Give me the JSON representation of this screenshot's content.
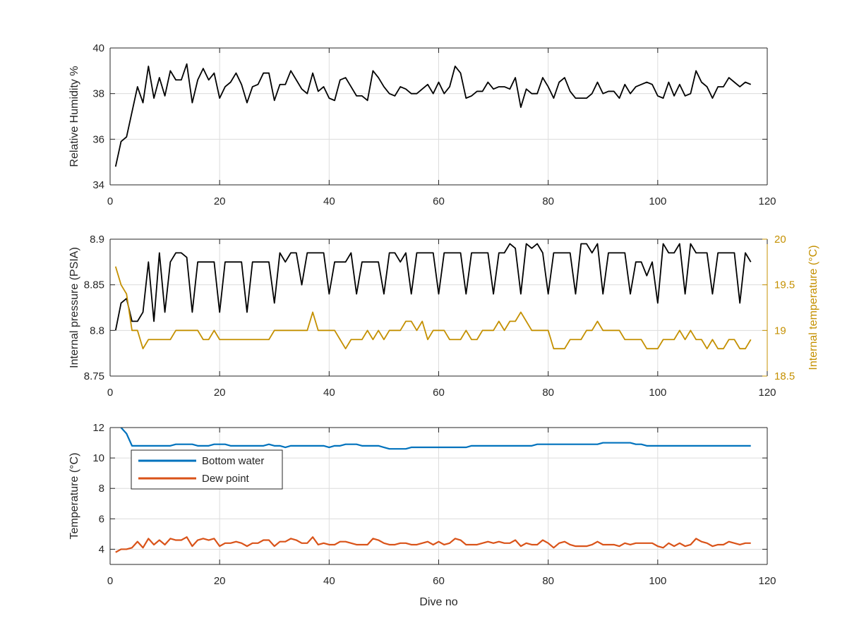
{
  "chart_data": [
    {
      "type": "line",
      "ylabel": "Relative Humidity %",
      "xlim": [
        0,
        120
      ],
      "ylim": [
        34,
        40
      ],
      "xticks": [
        0,
        20,
        40,
        60,
        80,
        100,
        120
      ],
      "yticks": [
        34,
        36,
        38,
        40
      ],
      "grid": true,
      "series": [
        {
          "color": "#000000",
          "values": [
            34.8,
            35.9,
            36.1,
            37.2,
            38.3,
            37.6,
            39.2,
            37.8,
            38.7,
            37.9,
            39.0,
            38.6,
            38.6,
            39.3,
            37.6,
            38.6,
            39.1,
            38.6,
            38.9,
            37.8,
            38.3,
            38.5,
            38.9,
            38.4,
            37.6,
            38.3,
            38.4,
            38.9,
            38.9,
            37.7,
            38.4,
            38.4,
            39.0,
            38.6,
            38.2,
            38.0,
            38.9,
            38.1,
            38.3,
            37.8,
            37.7,
            38.6,
            38.7,
            38.3,
            37.9,
            37.9,
            37.7,
            39.0,
            38.7,
            38.3,
            38.0,
            37.9,
            38.3,
            38.2,
            38.0,
            38.0,
            38.2,
            38.4,
            38.0,
            38.5,
            38.0,
            38.3,
            39.2,
            38.9,
            37.8,
            37.9,
            38.1,
            38.1,
            38.5,
            38.2,
            38.3,
            38.3,
            38.2,
            38.7,
            37.4,
            38.2,
            38.0,
            38.0,
            38.7,
            38.3,
            37.8,
            38.5,
            38.7,
            38.1,
            37.8,
            37.8,
            37.8,
            38.0,
            38.5,
            38.0,
            38.1,
            38.1,
            37.8,
            38.4,
            38.0,
            38.3,
            38.4,
            38.5,
            38.4,
            37.9,
            37.8,
            38.5,
            37.9,
            38.4,
            37.9,
            38.0,
            39.0,
            38.5,
            38.3,
            37.8,
            38.3,
            38.3,
            38.7,
            38.5,
            38.3,
            38.5,
            38.4
          ]
        }
      ]
    },
    {
      "type": "line",
      "ylabel": "Internal pressure (PSIA)",
      "y2label": "Internal temperature (°C)",
      "xlim": [
        0,
        120
      ],
      "ylim": [
        8.75,
        8.9
      ],
      "y2lim": [
        18.5,
        20
      ],
      "xticks": [
        0,
        20,
        40,
        60,
        80,
        100,
        120
      ],
      "yticks": [
        8.75,
        8.8,
        8.85,
        8.9
      ],
      "y2ticks": [
        18.5,
        19,
        19.5,
        20
      ],
      "y2color": "#c49000",
      "grid": true,
      "series": [
        {
          "axis": "left",
          "color": "#000000",
          "values": [
            8.8,
            8.83,
            8.835,
            8.81,
            8.81,
            8.82,
            8.875,
            8.81,
            8.885,
            8.82,
            8.875,
            8.885,
            8.885,
            8.88,
            8.82,
            8.875,
            8.875,
            8.875,
            8.875,
            8.82,
            8.875,
            8.875,
            8.875,
            8.875,
            8.82,
            8.875,
            8.875,
            8.875,
            8.875,
            8.83,
            8.885,
            8.875,
            8.885,
            8.885,
            8.85,
            8.885,
            8.885,
            8.885,
            8.885,
            8.84,
            8.875,
            8.875,
            8.875,
            8.885,
            8.84,
            8.875,
            8.875,
            8.875,
            8.875,
            8.84,
            8.885,
            8.885,
            8.875,
            8.885,
            8.84,
            8.885,
            8.885,
            8.885,
            8.885,
            8.84,
            8.885,
            8.885,
            8.885,
            8.885,
            8.84,
            8.885,
            8.885,
            8.885,
            8.885,
            8.84,
            8.885,
            8.885,
            8.895,
            8.89,
            8.84,
            8.895,
            8.89,
            8.895,
            8.885,
            8.84,
            8.885,
            8.885,
            8.885,
            8.885,
            8.84,
            8.895,
            8.895,
            8.885,
            8.895,
            8.84,
            8.885,
            8.885,
            8.885,
            8.885,
            8.84,
            8.875,
            8.875,
            8.86,
            8.875,
            8.83,
            8.895,
            8.885,
            8.885,
            8.895,
            8.84,
            8.895,
            8.885,
            8.885,
            8.885,
            8.84,
            8.885,
            8.885,
            8.885,
            8.885,
            8.83,
            8.885,
            8.875
          ]
        },
        {
          "axis": "right",
          "color": "#c49000",
          "values": [
            19.7,
            19.5,
            19.4,
            19.0,
            19.0,
            18.8,
            18.9,
            18.9,
            18.9,
            18.9,
            18.9,
            19.0,
            19.0,
            19.0,
            19.0,
            19.0,
            18.9,
            18.9,
            19.0,
            18.9,
            18.9,
            18.9,
            18.9,
            18.9,
            18.9,
            18.9,
            18.9,
            18.9,
            18.9,
            19.0,
            19.0,
            19.0,
            19.0,
            19.0,
            19.0,
            19.0,
            19.2,
            19.0,
            19.0,
            19.0,
            19.0,
            18.9,
            18.8,
            18.9,
            18.9,
            18.9,
            19.0,
            18.9,
            19.0,
            18.9,
            19.0,
            19.0,
            19.0,
            19.1,
            19.1,
            19.0,
            19.1,
            18.9,
            19.0,
            19.0,
            19.0,
            18.9,
            18.9,
            18.9,
            19.0,
            18.9,
            18.9,
            19.0,
            19.0,
            19.0,
            19.1,
            19.0,
            19.1,
            19.1,
            19.2,
            19.1,
            19.0,
            19.0,
            19.0,
            19.0,
            18.8,
            18.8,
            18.8,
            18.9,
            18.9,
            18.9,
            19.0,
            19.0,
            19.1,
            19.0,
            19.0,
            19.0,
            19.0,
            18.9,
            18.9,
            18.9,
            18.9,
            18.8,
            18.8,
            18.8,
            18.9,
            18.9,
            18.9,
            19.0,
            18.9,
            19.0,
            18.9,
            18.9,
            18.8,
            18.9,
            18.8,
            18.8,
            18.9,
            18.9,
            18.8,
            18.8,
            18.9
          ]
        }
      ]
    },
    {
      "type": "line",
      "xlabel": "Dive no",
      "ylabel": "Temperature (°C)",
      "xlim": [
        0,
        120
      ],
      "ylim": [
        3,
        12
      ],
      "xticks": [
        0,
        20,
        40,
        60,
        80,
        100,
        120
      ],
      "yticks": [
        4,
        6,
        8,
        10,
        12
      ],
      "grid": true,
      "legend": "top-left",
      "series": [
        {
          "name": "Bottom water",
          "color": "#0072bd",
          "values": [
            12.5,
            12.0,
            11.6,
            10.8,
            10.8,
            10.8,
            10.8,
            10.8,
            10.8,
            10.8,
            10.8,
            10.9,
            10.9,
            10.9,
            10.9,
            10.8,
            10.8,
            10.8,
            10.9,
            10.9,
            10.9,
            10.8,
            10.8,
            10.8,
            10.8,
            10.8,
            10.8,
            10.8,
            10.9,
            10.8,
            10.8,
            10.7,
            10.8,
            10.8,
            10.8,
            10.8,
            10.8,
            10.8,
            10.8,
            10.7,
            10.8,
            10.8,
            10.9,
            10.9,
            10.9,
            10.8,
            10.8,
            10.8,
            10.8,
            10.7,
            10.6,
            10.6,
            10.6,
            10.6,
            10.7,
            10.7,
            10.7,
            10.7,
            10.7,
            10.7,
            10.7,
            10.7,
            10.7,
            10.7,
            10.7,
            10.8,
            10.8,
            10.8,
            10.8,
            10.8,
            10.8,
            10.8,
            10.8,
            10.8,
            10.8,
            10.8,
            10.8,
            10.9,
            10.9,
            10.9,
            10.9,
            10.9,
            10.9,
            10.9,
            10.9,
            10.9,
            10.9,
            10.9,
            10.9,
            11.0,
            11.0,
            11.0,
            11.0,
            11.0,
            11.0,
            10.9,
            10.9,
            10.8,
            10.8,
            10.8,
            10.8,
            10.8,
            10.8,
            10.8,
            10.8,
            10.8,
            10.8,
            10.8,
            10.8,
            10.8,
            10.8,
            10.8,
            10.8,
            10.8,
            10.8,
            10.8,
            10.8
          ]
        },
        {
          "name": "Dew point",
          "color": "#d95319",
          "values": [
            3.8,
            4.0,
            4.0,
            4.1,
            4.5,
            4.1,
            4.7,
            4.3,
            4.6,
            4.3,
            4.7,
            4.6,
            4.6,
            4.8,
            4.2,
            4.6,
            4.7,
            4.6,
            4.7,
            4.2,
            4.4,
            4.4,
            4.5,
            4.4,
            4.2,
            4.4,
            4.4,
            4.6,
            4.6,
            4.2,
            4.5,
            4.5,
            4.7,
            4.6,
            4.4,
            4.4,
            4.8,
            4.3,
            4.4,
            4.3,
            4.3,
            4.5,
            4.5,
            4.4,
            4.3,
            4.3,
            4.3,
            4.7,
            4.6,
            4.4,
            4.3,
            4.3,
            4.4,
            4.4,
            4.3,
            4.3,
            4.4,
            4.5,
            4.3,
            4.5,
            4.3,
            4.4,
            4.7,
            4.6,
            4.3,
            4.3,
            4.3,
            4.4,
            4.5,
            4.4,
            4.5,
            4.4,
            4.4,
            4.6,
            4.2,
            4.4,
            4.3,
            4.3,
            4.6,
            4.4,
            4.1,
            4.4,
            4.5,
            4.3,
            4.2,
            4.2,
            4.2,
            4.3,
            4.5,
            4.3,
            4.3,
            4.3,
            4.2,
            4.4,
            4.3,
            4.4,
            4.4,
            4.4,
            4.4,
            4.2,
            4.1,
            4.4,
            4.2,
            4.4,
            4.2,
            4.3,
            4.7,
            4.5,
            4.4,
            4.2,
            4.3,
            4.3,
            4.5,
            4.4,
            4.3,
            4.4,
            4.4
          ]
        }
      ]
    }
  ]
}
